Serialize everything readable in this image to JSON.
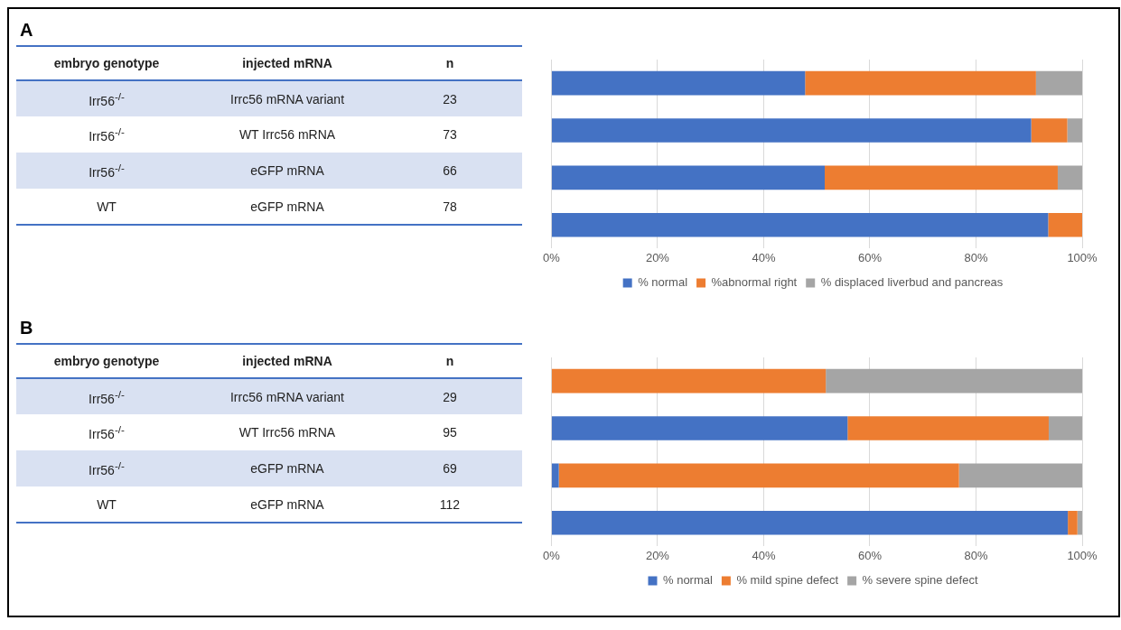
{
  "chart_data": [
    {
      "type": "other",
      "title": "A",
      "categories": [
        "embryo genotype",
        "injected mRNA",
        "n"
      ],
      "annotations": [
        "Irr56$^{-/-}$",
        "Irrc56 mRNA variant",
        "23",
        "Irr56$^{-/-}$",
        "WT Irrc56 mRNA",
        "73",
        "Irr56$^{-/-}$",
        "eGFP mRNA",
        "66",
        "WT",
        "eGFP mRNA",
        "78"
      ]
    },
    {
      "type": "bar",
      "orientation": "horizontal",
      "stacked": true,
      "categories": [
        null,
        null,
        null,
        null
      ],
      "series": [
        {
          "name": "% normal",
          "color": "#4472c4",
          "values": [
            47.8,
            90.4,
            51.5,
            93.6
          ]
        },
        {
          "name": "%abnormal right",
          "color": "#ed7d31",
          "values": [
            43.5,
            6.8,
            43.9,
            6.4
          ]
        },
        {
          "name": "% displaced liverbud and pancreas",
          "color": "#a5a5a5",
          "values": [
            8.7,
            2.8,
            4.6,
            0
          ]
        }
      ],
      "xlim": [
        0,
        100
      ],
      "xticks": [
        {
          "value": 0,
          "label": "0%"
        },
        {
          "value": 20,
          "label": "20%"
        },
        {
          "value": 40,
          "label": "40%"
        },
        {
          "value": 60,
          "label": "60%"
        },
        {
          "value": 80,
          "label": "80%"
        },
        {
          "value": 100,
          "label": "100%"
        }
      ],
      "grid": "x",
      "legend": "bottom",
      "tick_labels": "x"
    },
    {
      "type": "other",
      "title": "B",
      "categories": [
        "embryo genotype",
        "injected mRNA",
        "n"
      ],
      "annotations": [
        "Irr56$^{-/-}$",
        "Irrc56 mRNA variant",
        "29",
        "Irr56$^{-/-}$",
        "WT Irrc56 mRNA",
        "95",
        "Irr56$^{-/-}$",
        "eGFP mRNA",
        "69",
        "WT",
        "eGFP mRNA",
        "112"
      ]
    },
    {
      "type": "bar",
      "orientation": "horizontal",
      "stacked": true,
      "categories": [
        null,
        null,
        null,
        null
      ],
      "series": [
        {
          "name": "% normal",
          "color": "#4472c4",
          "values": [
            0,
            55.8,
            1.4,
            97.3
          ]
        },
        {
          "name": "% mild spine defect",
          "color": "#ed7d31",
          "values": [
            51.7,
            37.9,
            75.4,
            1.8
          ]
        },
        {
          "name": "% severe spine defect",
          "color": "#a5a5a5",
          "values": [
            48.3,
            6.3,
            23.2,
            0.9
          ]
        }
      ],
      "xlim": [
        0,
        100
      ],
      "xticks": [
        {
          "value": 0,
          "label": "0%"
        },
        {
          "value": 20,
          "label": "20%"
        },
        {
          "value": 40,
          "label": "40%"
        },
        {
          "value": 60,
          "label": "60%"
        },
        {
          "value": 80,
          "label": "80%"
        },
        {
          "value": 100,
          "label": "100%"
        }
      ],
      "grid": "x",
      "legend": "bottom",
      "tick_labels": "x"
    }
  ]
}
